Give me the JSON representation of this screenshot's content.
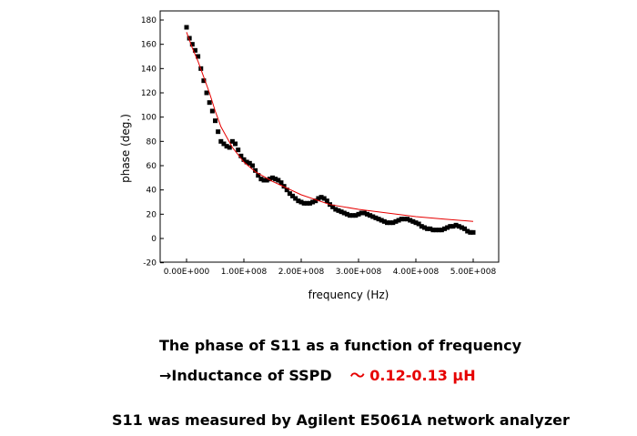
{
  "chart_data": {
    "type": "scatter",
    "xlabel": "frequency (Hz)",
    "ylabel": "phase (deg.)",
    "xlim": [
      0,
      550000000
    ],
    "ylim": [
      -20,
      185
    ],
    "x_ticks": [
      0,
      100000000,
      200000000,
      300000000,
      400000000,
      500000000
    ],
    "x_tick_labels": [
      "0.00E+000",
      "1.00E+008",
      "2.00E+008",
      "3.00E+008",
      "4.00E+008",
      "5.00E+008"
    ],
    "y_ticks": [
      -20,
      0,
      20,
      40,
      60,
      80,
      100,
      120,
      140,
      160,
      180
    ],
    "y_tick_labels": [
      "-20",
      "0",
      "20",
      "40",
      "60",
      "80",
      "100",
      "120",
      "140",
      "160",
      "180"
    ],
    "grid": false,
    "legend": "none",
    "series": [
      {
        "kind": "measured",
        "marker": "square",
        "color": "#000000",
        "points": [
          [
            0,
            174
          ],
          [
            5000000,
            165
          ],
          [
            10000000,
            160
          ],
          [
            15000000,
            155
          ],
          [
            20000000,
            150
          ],
          [
            25000000,
            140
          ],
          [
            30000000,
            130
          ],
          [
            35000000,
            120
          ],
          [
            40000000,
            112
          ],
          [
            45000000,
            105
          ],
          [
            50000000,
            97
          ],
          [
            55000000,
            88
          ],
          [
            60000000,
            80
          ],
          [
            65000000,
            78
          ],
          [
            70000000,
            76
          ],
          [
            75000000,
            75
          ],
          [
            80000000,
            80
          ],
          [
            85000000,
            78
          ],
          [
            90000000,
            73
          ],
          [
            95000000,
            68
          ],
          [
            100000000,
            65
          ],
          [
            105000000,
            63
          ],
          [
            110000000,
            62
          ],
          [
            115000000,
            60
          ],
          [
            120000000,
            56
          ],
          [
            125000000,
            52
          ],
          [
            130000000,
            49
          ],
          [
            135000000,
            48
          ],
          [
            140000000,
            48
          ],
          [
            145000000,
            49
          ],
          [
            150000000,
            50
          ],
          [
            155000000,
            49
          ],
          [
            160000000,
            48
          ],
          [
            165000000,
            46
          ],
          [
            170000000,
            43
          ],
          [
            175000000,
            40
          ],
          [
            180000000,
            37
          ],
          [
            185000000,
            35
          ],
          [
            190000000,
            33
          ],
          [
            195000000,
            31
          ],
          [
            200000000,
            30
          ],
          [
            205000000,
            29
          ],
          [
            210000000,
            29
          ],
          [
            215000000,
            29
          ],
          [
            220000000,
            30
          ],
          [
            225000000,
            31
          ],
          [
            230000000,
            33
          ],
          [
            235000000,
            34
          ],
          [
            240000000,
            33
          ],
          [
            245000000,
            31
          ],
          [
            250000000,
            28
          ],
          [
            255000000,
            26
          ],
          [
            260000000,
            24
          ],
          [
            265000000,
            23
          ],
          [
            270000000,
            22
          ],
          [
            275000000,
            21
          ],
          [
            280000000,
            20
          ],
          [
            285000000,
            19
          ],
          [
            290000000,
            19
          ],
          [
            295000000,
            19
          ],
          [
            300000000,
            20
          ],
          [
            305000000,
            21
          ],
          [
            310000000,
            21
          ],
          [
            315000000,
            20
          ],
          [
            320000000,
            19
          ],
          [
            325000000,
            18
          ],
          [
            330000000,
            17
          ],
          [
            335000000,
            16
          ],
          [
            340000000,
            15
          ],
          [
            345000000,
            14
          ],
          [
            350000000,
            13
          ],
          [
            355000000,
            13
          ],
          [
            360000000,
            13
          ],
          [
            365000000,
            14
          ],
          [
            370000000,
            15
          ],
          [
            375000000,
            16
          ],
          [
            380000000,
            16
          ],
          [
            385000000,
            16
          ],
          [
            390000000,
            15
          ],
          [
            395000000,
            14
          ],
          [
            400000000,
            13
          ],
          [
            405000000,
            12
          ],
          [
            410000000,
            10
          ],
          [
            415000000,
            9
          ],
          [
            420000000,
            8
          ],
          [
            425000000,
            8
          ],
          [
            430000000,
            7
          ],
          [
            435000000,
            7
          ],
          [
            440000000,
            7
          ],
          [
            445000000,
            7
          ],
          [
            450000000,
            8
          ],
          [
            455000000,
            9
          ],
          [
            460000000,
            10
          ],
          [
            465000000,
            10
          ],
          [
            470000000,
            11
          ],
          [
            475000000,
            10
          ],
          [
            480000000,
            9
          ],
          [
            485000000,
            8
          ],
          [
            490000000,
            6
          ],
          [
            495000000,
            5
          ],
          [
            500000000,
            5
          ]
        ]
      },
      {
        "kind": "fit",
        "color": "#e60000",
        "points": [
          [
            0,
            170
          ],
          [
            10000000,
            157
          ],
          [
            20000000,
            146
          ],
          [
            30000000,
            133
          ],
          [
            40000000,
            120
          ],
          [
            50000000,
            105
          ],
          [
            60000000,
            92
          ],
          [
            80000000,
            75
          ],
          [
            100000000,
            63
          ],
          [
            120000000,
            55
          ],
          [
            150000000,
            47
          ],
          [
            200000000,
            36
          ],
          [
            250000000,
            28
          ],
          [
            300000000,
            24
          ],
          [
            350000000,
            21
          ],
          [
            400000000,
            18
          ],
          [
            450000000,
            16
          ],
          [
            500000000,
            14
          ]
        ]
      }
    ]
  },
  "caption": {
    "line1": "The phase of S11 as a function of frequency",
    "line2_prefix": "→Inductance of SSPD",
    "line2_value": "～ 0.12-0.13 μH",
    "line3": "S11 was measured by Agilent E5061A network analyzer"
  }
}
